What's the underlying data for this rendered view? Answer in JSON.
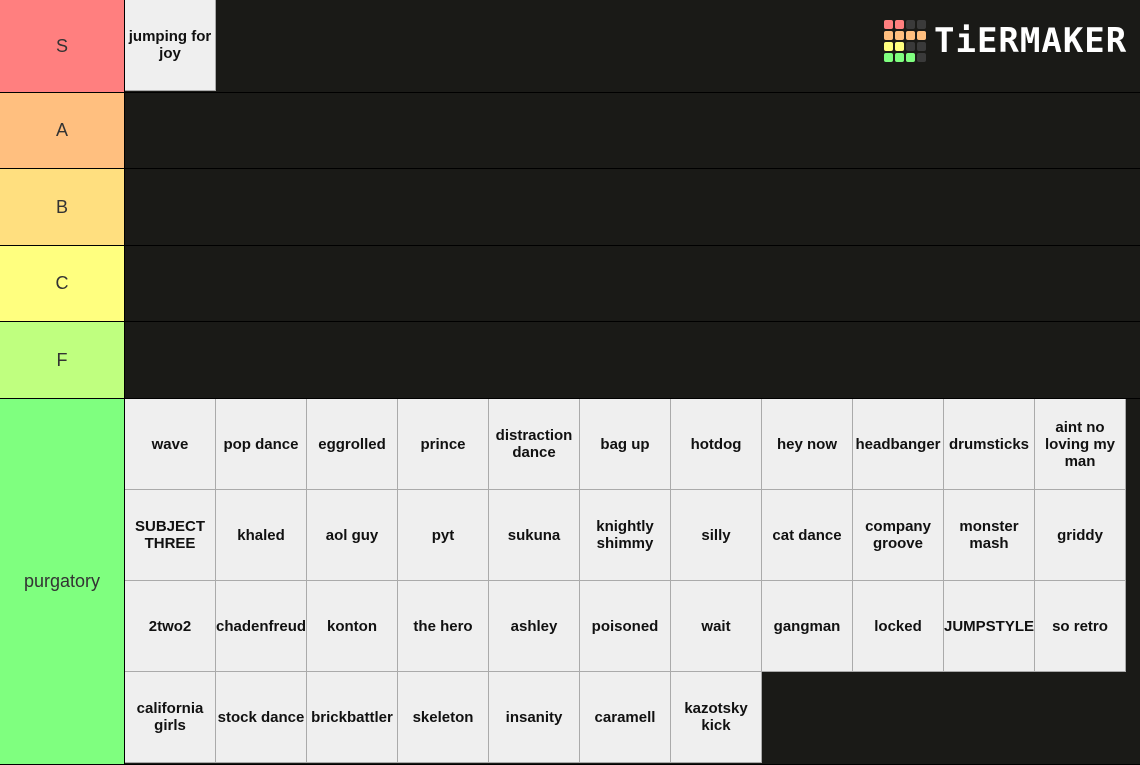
{
  "logo": {
    "text": "TiERMAKER",
    "grid_colors": [
      "#ff7f7f",
      "#ff7f7f",
      "#3a3a3a",
      "#3a3a3a",
      "#ffbf7f",
      "#ffbf7f",
      "#ffbf7f",
      "#ffbf7f",
      "#ffff7f",
      "#ffff7f",
      "#3a3a3a",
      "#3a3a3a",
      "#7fff7f",
      "#7fff7f",
      "#7fff7f",
      "#3a3a3a"
    ]
  },
  "tiers": [
    {
      "label": "S",
      "color": "#ff7f7f",
      "items": [
        "jumping for joy"
      ]
    },
    {
      "label": "A",
      "color": "#ffbf7f",
      "items": []
    },
    {
      "label": "B",
      "color": "#ffdf7f",
      "items": []
    },
    {
      "label": "C",
      "color": "#ffff7f",
      "items": []
    },
    {
      "label": "F",
      "color": "#bfff7f",
      "items": []
    },
    {
      "label": "purgatory",
      "color": "#7fff7f",
      "items": [
        "wave",
        "pop dance",
        "eggrolled",
        "prince",
        "distraction dance",
        "bag up",
        "hotdog",
        "hey now",
        "headbanger",
        "drumsticks",
        "aint no loving my man",
        "SUBJECT THREE",
        "khaled",
        "aol guy",
        "pyt",
        "sukuna",
        "knightly shimmy",
        "silly",
        "cat dance",
        "company groove",
        "monster mash",
        "griddy",
        "2two2",
        "schadenfreude",
        "konton",
        "the hero",
        "ashley",
        "poisoned",
        "wait",
        "gangman",
        "locked",
        "JUMPSTYLE",
        "so retro",
        "california girls",
        "stock dance",
        "brickbattler",
        "skeleton",
        "insanity",
        "caramell",
        "kazotsky kick"
      ]
    }
  ]
}
